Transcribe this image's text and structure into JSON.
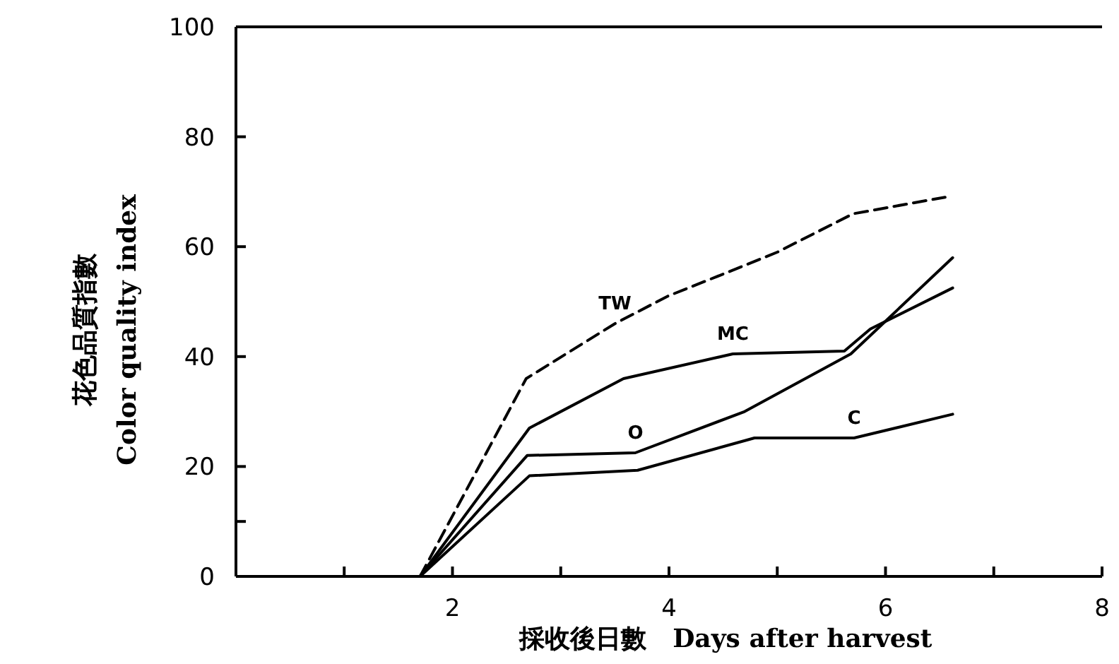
{
  "chart_data": {
    "type": "line",
    "xlabel": "採收後日數   Days after harvest",
    "ylabel": "花色品質指數\nColor quality index",
    "xlim": [
      0,
      8
    ],
    "ylim": [
      0,
      100
    ],
    "xticks": [
      {
        "value": 0,
        "label": null
      },
      {
        "value": 1,
        "label": null
      },
      2,
      {
        "value": 3,
        "label": null
      },
      4,
      {
        "value": 5,
        "label": null
      },
      6,
      {
        "value": 7,
        "label": null
      },
      8
    ],
    "yticks": [
      0,
      {
        "value": 10,
        "label": null
      },
      20,
      40,
      60,
      80,
      100
    ],
    "grid": false,
    "legend": false,
    "marker": "none",
    "series": [
      {
        "name": "TW",
        "color": "#000000",
        "line_style": "dashed",
        "x": [
          1.7,
          2.68,
          3.5,
          3.99,
          4.5,
          5.0,
          5.7,
          6.55
        ],
        "values": [
          0,
          36,
          46,
          51,
          55,
          59,
          66,
          69
        ]
      },
      {
        "name": "MC",
        "color": "#000000",
        "line_style": "solid",
        "x": [
          1.7,
          2.71,
          3.58,
          4.59,
          5.62,
          5.86,
          6.62
        ],
        "values": [
          0,
          27,
          36,
          40.5,
          41,
          45,
          52.5
        ]
      },
      {
        "name": "O",
        "color": "#000000",
        "line_style": "solid",
        "x": [
          1.7,
          2.69,
          3.69,
          4.7,
          5.68,
          6.62
        ],
        "values": [
          0,
          22,
          22.5,
          30,
          40.5,
          58
        ]
      },
      {
        "name": "C",
        "color": "#000000",
        "line_style": "solid",
        "x": [
          1.7,
          2.71,
          3.71,
          4.79,
          5.71,
          6.62
        ],
        "values": [
          0,
          18.3,
          19.3,
          25.2,
          25.2,
          29.5
        ]
      }
    ]
  }
}
